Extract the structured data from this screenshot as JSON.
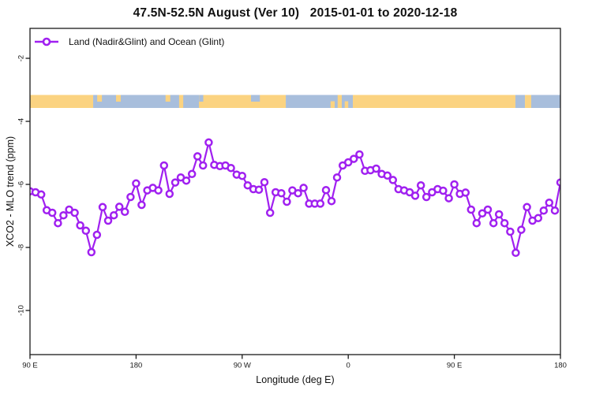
{
  "title": "47.5N-52.5N August (Ver 10)   2015-01-01 to 2020-12-18",
  "legend": {
    "label": "Land (Nadir&Glint) and Ocean (Glint)"
  },
  "axes": {
    "x": {
      "label": "Longitude (deg E)",
      "ticks": [
        {
          "value": 90,
          "label": "90 E"
        },
        {
          "value": 180,
          "label": "180"
        },
        {
          "value": 270,
          "label": "90 W"
        },
        {
          "value": 360,
          "label": "0"
        },
        {
          "value": 450,
          "label": "90 E"
        },
        {
          "value": 540,
          "label": "180"
        }
      ],
      "range": [
        90,
        540
      ]
    },
    "y": {
      "label": "XCO2 - MLO trend (ppm)",
      "ticks": [
        {
          "value": -2,
          "label": "-2"
        },
        {
          "value": -4,
          "label": "-4"
        },
        {
          "value": -6,
          "label": "-6"
        },
        {
          "value": -8,
          "label": "-8"
        },
        {
          "value": -10,
          "label": "-10"
        }
      ],
      "range": [
        -11.35,
        -1.05
      ]
    }
  },
  "surface_band": {
    "description": "land/ocean strip drawn across plot near y=-3.4",
    "land_color": "#FBD381",
    "ocean_color": "#A8BEDC",
    "segments": [
      {
        "from": 90,
        "to": 143.6,
        "surface": "land"
      },
      {
        "from": 143.6,
        "to": 233.3,
        "surface": "ocean"
      },
      {
        "from": 233.3,
        "to": 307.0,
        "surface": "land"
      },
      {
        "from": 307.0,
        "to": 363.9,
        "surface": "ocean"
      },
      {
        "from": 363.9,
        "to": 501.8,
        "surface": "land"
      },
      {
        "from": 501.8,
        "to": 509.9,
        "surface": "ocean"
      },
      {
        "from": 509.9,
        "to": 515.2,
        "surface": "land"
      },
      {
        "from": 515.2,
        "to": 540.0,
        "surface": "ocean"
      }
    ],
    "flecks": [
      {
        "from": 147.0,
        "to": 151.0,
        "surface": "land",
        "vpos": "top"
      },
      {
        "from": 163.0,
        "to": 167.0,
        "surface": "land",
        "vpos": "top"
      },
      {
        "from": 205.0,
        "to": 209.0,
        "surface": "land",
        "vpos": "top"
      },
      {
        "from": 216.5,
        "to": 220.0,
        "surface": "land",
        "vpos": "full"
      },
      {
        "from": 233.5,
        "to": 237.0,
        "surface": "ocean",
        "vpos": "top"
      },
      {
        "from": 277.5,
        "to": 285.0,
        "surface": "ocean",
        "vpos": "top"
      },
      {
        "from": 345.0,
        "to": 348.5,
        "surface": "land",
        "vpos": "bottom"
      },
      {
        "from": 351.0,
        "to": 354.5,
        "surface": "land",
        "vpos": "full"
      },
      {
        "from": 357.0,
        "to": 360.0,
        "surface": "land",
        "vpos": "bottom"
      }
    ]
  },
  "chart_data": {
    "type": "line",
    "title": "47.5N-52.5N August (Ver 10)   2015-01-01 to 2020-12-18",
    "xlabel": "Longitude (deg E)",
    "ylabel": "XCO2 - MLO trend (ppm)",
    "xlim": [
      90,
      540
    ],
    "ylim": [
      -11.35,
      -1.05
    ],
    "grid": false,
    "legend_position": "top-left",
    "series": [
      {
        "name": "Land (Nadir&Glint) and Ocean (Glint)",
        "color": "#A020F0",
        "marker": "open-circle",
        "x": [
          90.0,
          94.7,
          99.5,
          104.2,
          108.9,
          113.7,
          118.4,
          123.2,
          127.9,
          132.6,
          137.4,
          142.1,
          146.8,
          151.6,
          156.3,
          161.1,
          165.8,
          170.5,
          175.3,
          180.0,
          184.7,
          189.5,
          194.2,
          198.9,
          203.7,
          208.4,
          213.2,
          217.9,
          222.6,
          227.4,
          232.1,
          236.8,
          241.6,
          246.3,
          251.1,
          255.8,
          260.5,
          265.3,
          270.0,
          274.7,
          279.5,
          284.2,
          288.9,
          293.7,
          298.4,
          303.2,
          307.9,
          312.6,
          317.4,
          322.1,
          326.8,
          331.6,
          336.3,
          341.1,
          345.8,
          350.5,
          355.3,
          360.0,
          364.7,
          369.5,
          374.2,
          378.9,
          383.7,
          388.4,
          393.2,
          397.9,
          402.6,
          407.4,
          412.1,
          416.8,
          421.6,
          426.3,
          431.1,
          435.8,
          440.5,
          445.3,
          450.0,
          454.7,
          459.5,
          464.2,
          468.9,
          473.7,
          478.4,
          483.2,
          487.9,
          492.6,
          497.4,
          502.1,
          506.8,
          511.6,
          516.3,
          521.1,
          525.8,
          530.5,
          535.3,
          540.0
        ],
        "values": [
          -6.22,
          -6.25,
          -6.32,
          -6.82,
          -6.9,
          -7.23,
          -6.98,
          -6.8,
          -6.9,
          -7.3,
          -7.47,
          -8.15,
          -7.6,
          -6.72,
          -7.15,
          -6.98,
          -6.71,
          -6.87,
          -6.4,
          -5.97,
          -6.65,
          -6.19,
          -6.11,
          -6.19,
          -5.4,
          -6.3,
          -5.94,
          -5.78,
          -5.88,
          -5.67,
          -5.11,
          -5.4,
          -4.67,
          -5.38,
          -5.42,
          -5.4,
          -5.48,
          -5.69,
          -5.73,
          -6.03,
          -6.15,
          -6.17,
          -5.93,
          -6.9,
          -6.25,
          -6.28,
          -6.55,
          -6.19,
          -6.28,
          -6.11,
          -6.61,
          -6.61,
          -6.61,
          -6.18,
          -6.53,
          -5.78,
          -5.4,
          -5.3,
          -5.19,
          -5.05,
          -5.57,
          -5.55,
          -5.5,
          -5.67,
          -5.72,
          -5.86,
          -6.15,
          -6.19,
          -6.25,
          -6.36,
          -6.03,
          -6.4,
          -6.25,
          -6.15,
          -6.2,
          -6.44,
          -6.0,
          -6.3,
          -6.26,
          -6.8,
          -7.23,
          -6.92,
          -6.8,
          -7.23,
          -6.95,
          -7.23,
          -7.5,
          -8.17,
          -7.44,
          -6.72,
          -7.15,
          -7.07,
          -6.83,
          -6.58,
          -6.83,
          -5.94
        ]
      }
    ]
  },
  "colors": {
    "series": "#A020F0",
    "land": "#FBD381",
    "ocean": "#A8BEDC",
    "axis": "#1a1a1a"
  }
}
